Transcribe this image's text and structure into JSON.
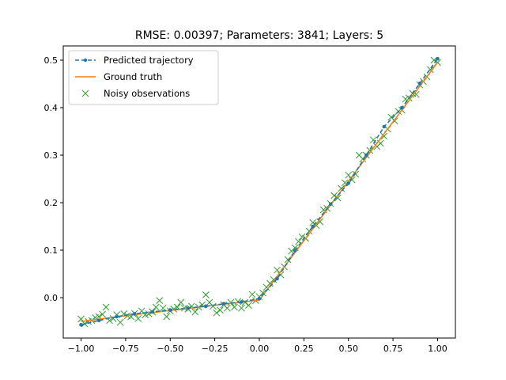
{
  "chart_data": {
    "type": "line",
    "title": "RMSE: 0.00397; Parameters: 3841; Layers: 5",
    "xlabel": "",
    "ylabel": "",
    "xlim": [
      -1.1,
      1.1
    ],
    "ylim": [
      -0.085,
      0.53
    ],
    "xticks": [
      -1.0,
      -0.75,
      -0.5,
      -0.25,
      0.0,
      0.25,
      0.5,
      0.75,
      1.0
    ],
    "xtick_labels": [
      "−1.00",
      "−0.75",
      "−0.50",
      "−0.25",
      "0.00",
      "0.25",
      "0.50",
      "0.75",
      "1.00"
    ],
    "yticks": [
      0.0,
      0.1,
      0.2,
      0.3,
      0.4,
      0.5
    ],
    "ytick_labels": [
      "0.0",
      "0.1",
      "0.2",
      "0.3",
      "0.4",
      "0.5"
    ],
    "grid": false,
    "legend_position": "top-left",
    "series": [
      {
        "name": "Predicted trajectory",
        "style": "dashed-dot-markers",
        "color": "#1f77b4",
        "x": [
          -1.0,
          -0.9,
          -0.8,
          -0.7,
          -0.6,
          -0.5,
          -0.4,
          -0.3,
          -0.2,
          -0.1,
          0.0,
          0.1,
          0.2,
          0.3,
          0.4,
          0.5,
          0.6,
          0.7,
          0.8,
          0.9,
          1.0
        ],
        "y": [
          -0.057,
          -0.048,
          -0.04,
          -0.034,
          -0.03,
          -0.026,
          -0.022,
          -0.018,
          -0.013,
          -0.009,
          -0.002,
          0.04,
          0.099,
          0.15,
          0.197,
          0.241,
          0.3,
          0.36,
          0.4,
          0.451,
          0.503
        ]
      },
      {
        "name": "Ground truth",
        "style": "solid",
        "color": "#ff7f0e",
        "x": [
          -1.0,
          -0.75,
          -0.5,
          -0.25,
          0.0,
          0.25,
          0.5,
          0.75,
          1.0
        ],
        "y": [
          -0.05,
          -0.038,
          -0.027,
          -0.016,
          -0.005,
          0.12,
          0.245,
          0.37,
          0.495
        ]
      },
      {
        "name": "Noisy observations",
        "style": "x-markers",
        "color": "#2ca02c",
        "x": [
          -1.0,
          -0.98,
          -0.96,
          -0.94,
          -0.92,
          -0.9,
          -0.88,
          -0.86,
          -0.84,
          -0.82,
          -0.8,
          -0.78,
          -0.76,
          -0.74,
          -0.72,
          -0.7,
          -0.68,
          -0.66,
          -0.64,
          -0.62,
          -0.6,
          -0.58,
          -0.56,
          -0.54,
          -0.52,
          -0.5,
          -0.48,
          -0.46,
          -0.44,
          -0.42,
          -0.4,
          -0.38,
          -0.36,
          -0.34,
          -0.32,
          -0.3,
          -0.28,
          -0.26,
          -0.24,
          -0.22,
          -0.2,
          -0.18,
          -0.16,
          -0.14,
          -0.12,
          -0.1,
          -0.08,
          -0.06,
          -0.04,
          -0.02,
          0.0,
          0.02,
          0.04,
          0.06,
          0.08,
          0.1,
          0.12,
          0.14,
          0.16,
          0.18,
          0.2,
          0.22,
          0.24,
          0.26,
          0.28,
          0.3,
          0.32,
          0.34,
          0.36,
          0.38,
          0.4,
          0.42,
          0.44,
          0.46,
          0.48,
          0.5,
          0.52,
          0.54,
          0.56,
          0.58,
          0.6,
          0.62,
          0.64,
          0.66,
          0.68,
          0.7,
          0.72,
          0.74,
          0.76,
          0.78,
          0.8,
          0.82,
          0.84,
          0.86,
          0.88,
          0.9,
          0.92,
          0.94,
          0.96,
          0.98,
          1.0
        ],
        "y": [
          -0.045,
          -0.055,
          -0.05,
          -0.048,
          -0.042,
          -0.04,
          -0.035,
          -0.02,
          -0.048,
          -0.044,
          -0.036,
          -0.052,
          -0.034,
          -0.038,
          -0.04,
          -0.033,
          -0.044,
          -0.028,
          -0.036,
          -0.034,
          -0.03,
          -0.02,
          -0.006,
          -0.022,
          -0.04,
          -0.028,
          -0.024,
          -0.02,
          -0.01,
          -0.022,
          -0.024,
          -0.018,
          -0.03,
          -0.02,
          -0.015,
          0.006,
          -0.01,
          -0.018,
          -0.032,
          -0.026,
          -0.015,
          -0.022,
          -0.01,
          -0.02,
          -0.008,
          -0.022,
          -0.01,
          -0.016,
          0.007,
          -0.006,
          0.002,
          0.01,
          0.022,
          0.03,
          0.038,
          0.058,
          0.048,
          0.065,
          0.08,
          0.098,
          0.105,
          0.118,
          0.128,
          0.125,
          0.14,
          0.158,
          0.152,
          0.16,
          0.185,
          0.188,
          0.198,
          0.215,
          0.21,
          0.23,
          0.242,
          0.258,
          0.248,
          0.26,
          0.3,
          0.292,
          0.3,
          0.31,
          0.332,
          0.318,
          0.325,
          0.34,
          0.355,
          0.38,
          0.372,
          0.392,
          0.395,
          0.418,
          0.42,
          0.43,
          0.428,
          0.448,
          0.455,
          0.465,
          0.48,
          0.5,
          0.495
        ]
      }
    ]
  }
}
